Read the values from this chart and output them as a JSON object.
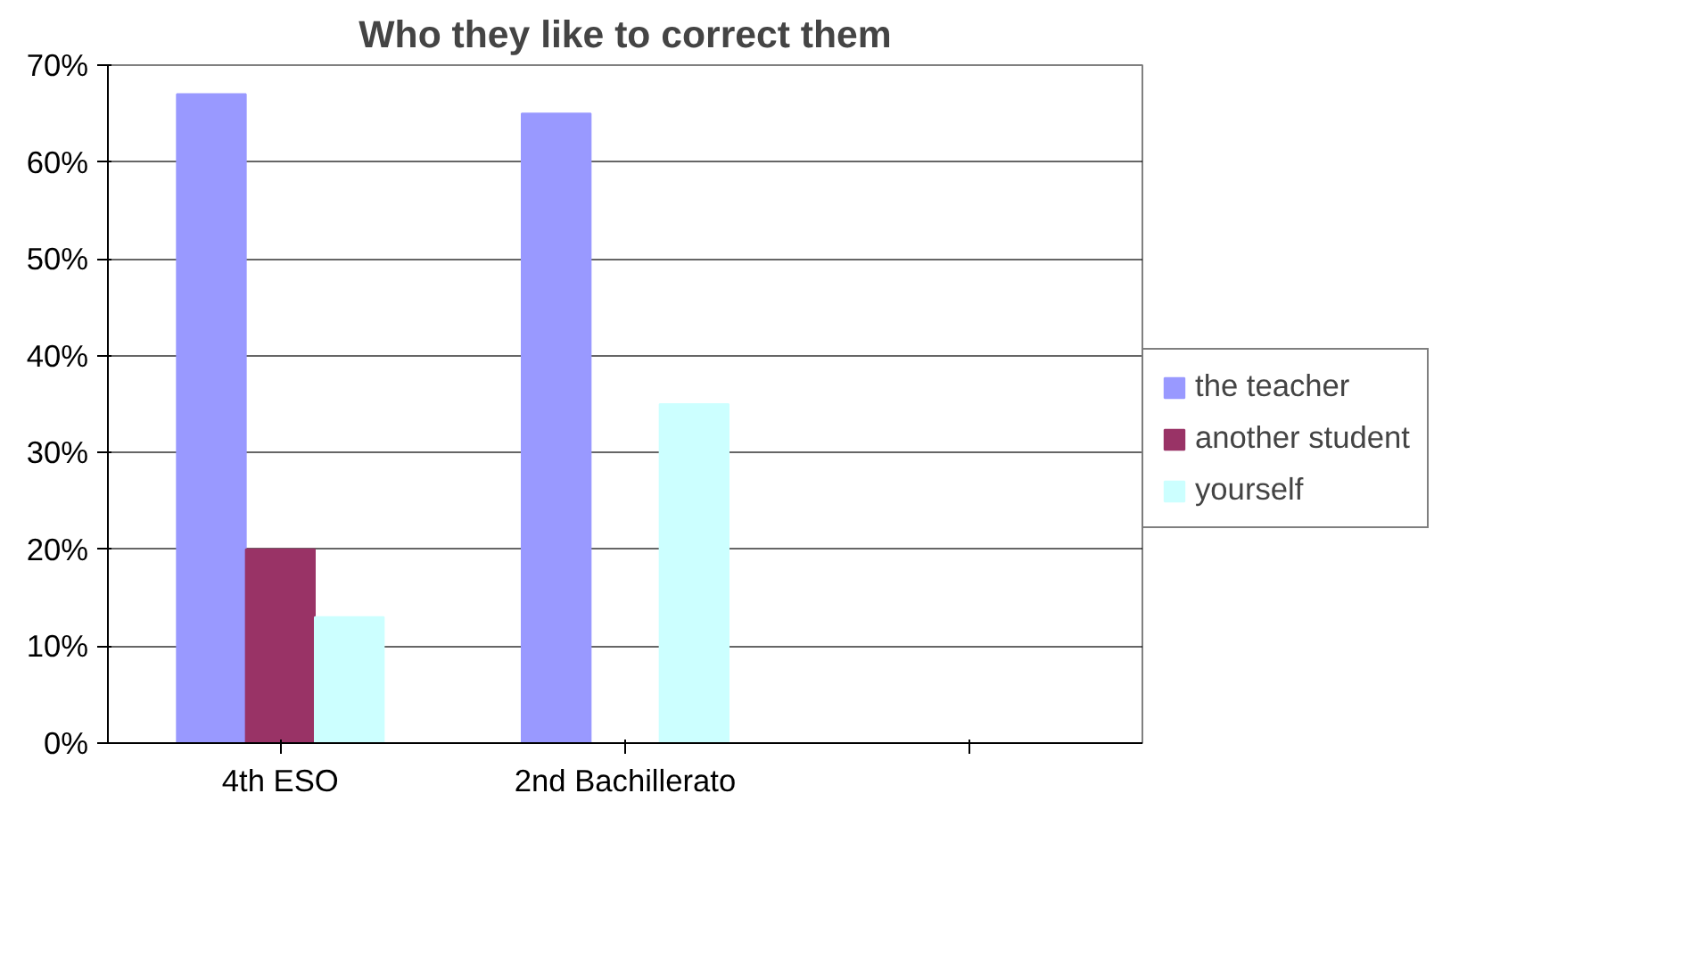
{
  "chart_data": {
    "type": "bar",
    "title": "Who they like to correct them",
    "categories": [
      "4th ESO",
      "2nd Bachillerato",
      null
    ],
    "series": [
      {
        "name": "the teacher",
        "color": "#9999ff",
        "values": [
          67,
          65,
          null
        ]
      },
      {
        "name": "another student",
        "color": "#993366",
        "values": [
          20,
          0,
          null
        ]
      },
      {
        "name": "yourself",
        "color": "#ccffff",
        "values": [
          13,
          35,
          null
        ]
      }
    ],
    "ylim": [
      0,
      70
    ],
    "yticks": [
      {
        "value": 0,
        "label": "0%"
      },
      {
        "value": 10,
        "label": "10%"
      },
      {
        "value": 20,
        "label": "20%"
      },
      {
        "value": 30,
        "label": "30%"
      },
      {
        "value": 40,
        "label": "40%"
      },
      {
        "value": 50,
        "label": "50%"
      },
      {
        "value": 60,
        "label": "60%"
      },
      {
        "value": 70,
        "label": "70%"
      }
    ],
    "grid": "y",
    "legend": "right"
  }
}
